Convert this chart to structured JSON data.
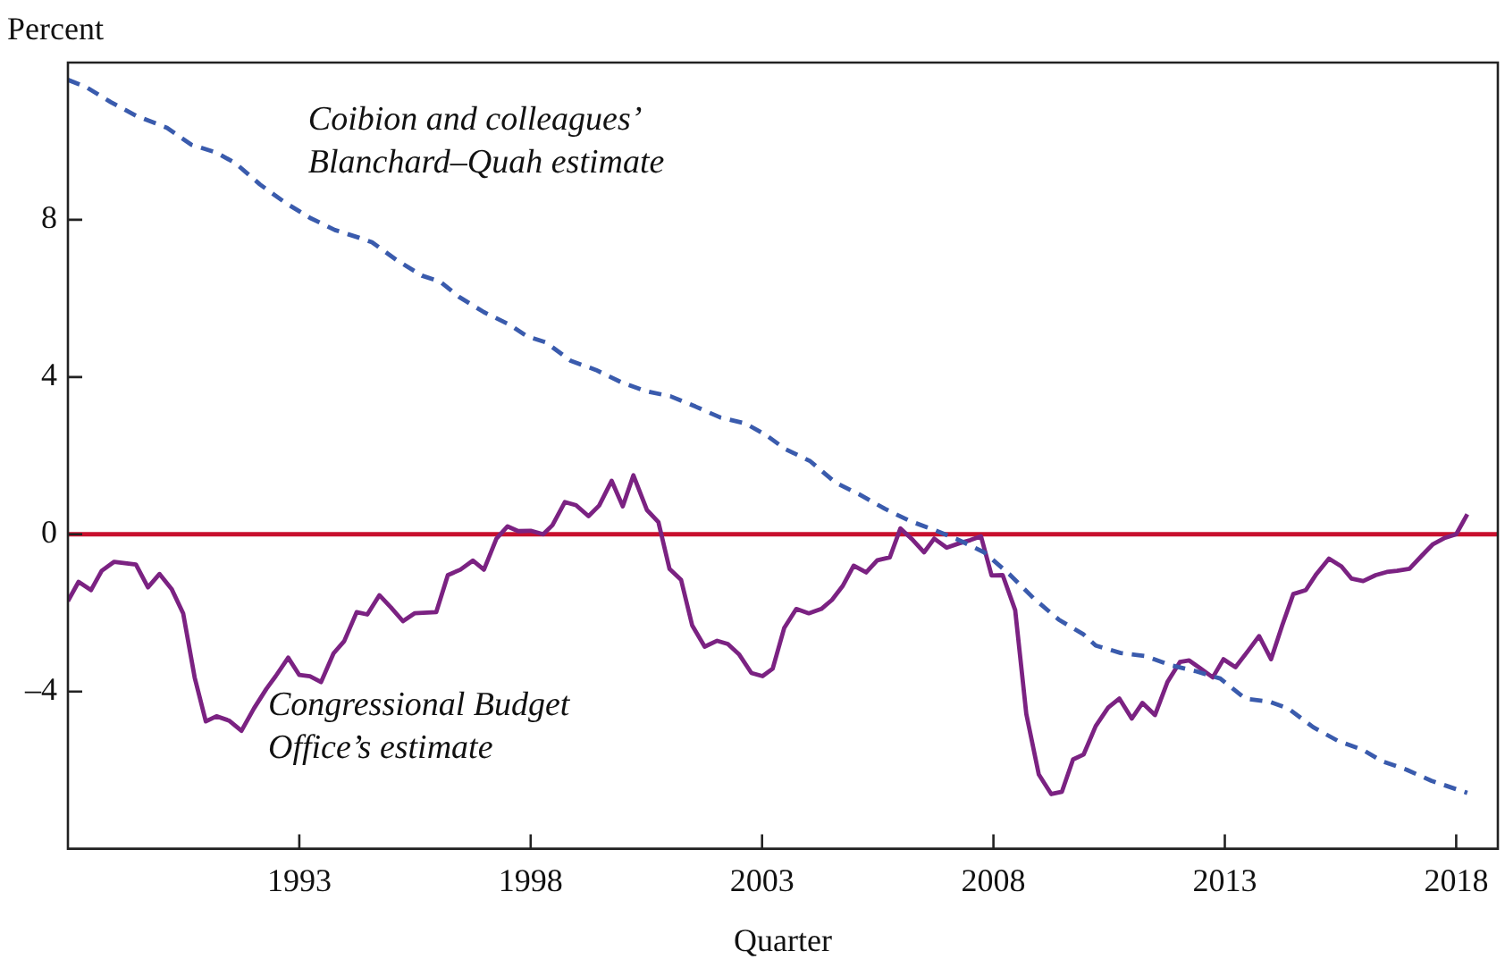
{
  "chart_data": {
    "type": "line",
    "xlabel": "Quarter",
    "ylabel": "Percent",
    "xlim": [
      1988,
      2018.9
    ],
    "xticks": [
      1993,
      1998,
      2003,
      2008,
      2013,
      2018
    ],
    "ylim": [
      -8,
      12
    ],
    "yticks": [
      {
        "value": -4,
        "label": "–4"
      },
      0,
      4,
      8
    ],
    "grid": false,
    "legend": false,
    "marker": "none",
    "ref_lines": [
      {
        "axis": "y",
        "value": 0,
        "color": "#c8102e"
      }
    ],
    "series": [
      {
        "name": "Coibion and colleagues’ Blanchard–Quah estimate",
        "color": "#3a5bad",
        "line_style": "dashed",
        "x": [
          1988.0,
          1988.39,
          1988.93,
          1989.47,
          1990.14,
          1990.67,
          1991.21,
          1991.62,
          1992.15,
          1992.69,
          1993.23,
          1993.77,
          1994.3,
          1994.57,
          1995.11,
          1995.65,
          1996.05,
          1996.45,
          1996.99,
          1997.53,
          1997.93,
          1998.33,
          1998.87,
          1999.41,
          1999.95,
          2000.49,
          2001.02,
          2001.56,
          2002.1,
          2002.64,
          2003.09,
          2003.5,
          2004.04,
          2004.58,
          2005.11,
          2005.65,
          2006.19,
          2006.72,
          2007.26,
          2007.8,
          2008.34,
          2008.87,
          2009.41,
          2009.95,
          2010.21,
          2010.75,
          2011.29,
          2011.83,
          2012.36,
          2012.9,
          2013.44,
          2013.97,
          2014.38,
          2014.91,
          2015.45,
          2015.99,
          2016.39,
          2016.93,
          2017.46,
          2018.24
        ],
        "values": [
          11.56,
          11.38,
          10.99,
          10.65,
          10.34,
          9.91,
          9.71,
          9.44,
          8.9,
          8.44,
          8.05,
          7.74,
          7.54,
          7.43,
          6.97,
          6.58,
          6.42,
          6.04,
          5.65,
          5.34,
          5.03,
          4.88,
          4.41,
          4.18,
          3.87,
          3.64,
          3.51,
          3.25,
          2.97,
          2.82,
          2.52,
          2.17,
          1.86,
          1.32,
          1.01,
          0.65,
          0.34,
          0.11,
          -0.15,
          -0.46,
          -1.01,
          -1.63,
          -2.17,
          -2.55,
          -2.83,
          -3.02,
          -3.1,
          -3.33,
          -3.48,
          -3.67,
          -4.18,
          -4.26,
          -4.44,
          -4.91,
          -5.26,
          -5.49,
          -5.77,
          -5.99,
          -6.27,
          -6.58
        ]
      },
      {
        "name": "Congressional Budget Office’s estimate",
        "color": "#7b2282",
        "line_style": "solid",
        "x": [
          1988.0,
          1988.23,
          1988.5,
          1988.73,
          1989.0,
          1989.47,
          1989.73,
          1989.98,
          1990.24,
          1990.49,
          1990.74,
          1990.98,
          1991.21,
          1991.48,
          1991.75,
          1992.02,
          1992.29,
          1992.49,
          1992.76,
          1993.0,
          1993.23,
          1993.47,
          1993.74,
          1993.97,
          1994.24,
          1994.47,
          1994.73,
          1994.98,
          1995.24,
          1995.49,
          1995.96,
          1996.21,
          1996.48,
          1996.75,
          1996.99,
          1997.26,
          1997.5,
          1997.73,
          1998.0,
          1998.27,
          1998.47,
          1998.74,
          1998.98,
          1999.25,
          1999.48,
          1999.75,
          1999.99,
          2000.22,
          2000.51,
          2000.76,
          2001.0,
          2001.25,
          2001.49,
          2001.76,
          2002.03,
          2002.26,
          2002.5,
          2002.77,
          2003.01,
          2003.23,
          2003.48,
          2003.74,
          2004.01,
          2004.28,
          2004.51,
          2004.74,
          2004.98,
          2005.25,
          2005.49,
          2005.76,
          2005.99,
          2006.26,
          2006.5,
          2006.72,
          2006.99,
          2007.26,
          2007.5,
          2007.73,
          2007.96,
          2008.2,
          2008.47,
          2008.71,
          2008.98,
          2009.25,
          2009.48,
          2009.72,
          2009.95,
          2010.21,
          2010.48,
          2010.72,
          2010.99,
          2011.22,
          2011.49,
          2011.76,
          2012.03,
          2012.23,
          2012.47,
          2012.74,
          2012.97,
          2013.23,
          2013.5,
          2013.74,
          2014.0,
          2014.24,
          2014.48,
          2014.75,
          2014.98,
          2015.25,
          2015.52,
          2015.74,
          2015.99,
          2016.26,
          2016.5,
          2016.72,
          2016.99,
          2017.26,
          2017.5,
          2017.76,
          2018.0,
          2018.24
        ],
        "values": [
          -1.7,
          -1.21,
          -1.42,
          -0.93,
          -0.7,
          -0.77,
          -1.35,
          -1.01,
          -1.39,
          -2.01,
          -3.65,
          -4.76,
          -4.63,
          -4.74,
          -5.0,
          -4.43,
          -3.93,
          -3.61,
          -3.14,
          -3.58,
          -3.61,
          -3.76,
          -3.03,
          -2.72,
          -1.98,
          -2.04,
          -1.55,
          -1.86,
          -2.21,
          -2.01,
          -1.98,
          -1.04,
          -0.9,
          -0.67,
          -0.9,
          -0.11,
          0.2,
          0.08,
          0.09,
          0.0,
          0.23,
          0.82,
          0.74,
          0.46,
          0.73,
          1.36,
          0.71,
          1.5,
          0.62,
          0.31,
          -0.88,
          -1.16,
          -2.32,
          -2.86,
          -2.71,
          -2.79,
          -3.05,
          -3.53,
          -3.61,
          -3.42,
          -2.38,
          -1.9,
          -2.01,
          -1.9,
          -1.67,
          -1.32,
          -0.8,
          -0.97,
          -0.66,
          -0.59,
          0.15,
          -0.15,
          -0.46,
          -0.11,
          -0.34,
          -0.23,
          -0.15,
          -0.05,
          -1.05,
          -1.04,
          -1.93,
          -4.57,
          -6.11,
          -6.61,
          -6.55,
          -5.73,
          -5.6,
          -4.88,
          -4.41,
          -4.18,
          -4.69,
          -4.29,
          -4.6,
          -3.76,
          -3.25,
          -3.21,
          -3.41,
          -3.64,
          -3.18,
          -3.38,
          -2.97,
          -2.59,
          -3.18,
          -2.32,
          -1.52,
          -1.42,
          -1.01,
          -0.62,
          -0.82,
          -1.13,
          -1.19,
          -1.04,
          -0.96,
          -0.93,
          -0.88,
          -0.54,
          -0.25,
          -0.09,
          0.0,
          0.51
        ]
      }
    ]
  }
}
